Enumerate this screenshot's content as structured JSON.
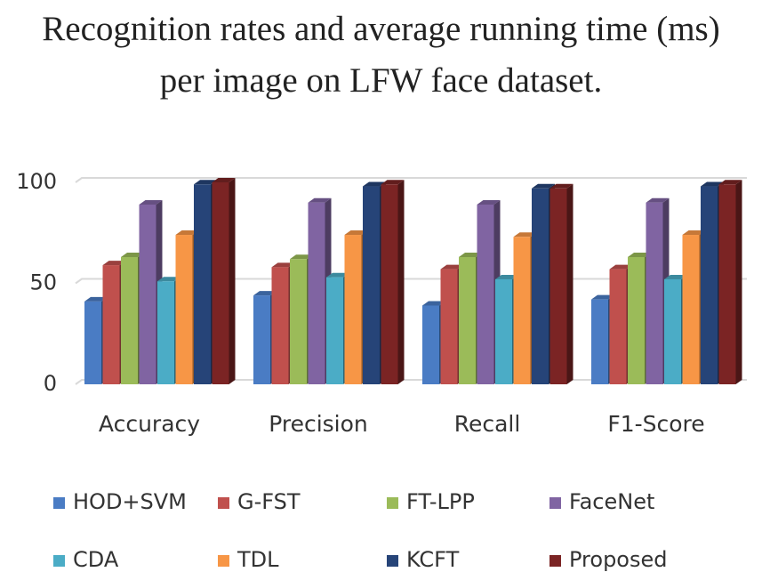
{
  "chart_data": {
    "type": "bar3d",
    "title": "Recognition rates and average running time (ms) per image on LFW face dataset.",
    "categories": [
      "Accuracy",
      "Precision",
      "Recall",
      "F1-Score"
    ],
    "series": [
      {
        "name": "HOD+SVM",
        "color": "#4a7cc4",
        "values": [
          41,
          44,
          39,
          42
        ]
      },
      {
        "name": "G-FST",
        "color": "#c0504d",
        "values": [
          59,
          58,
          57,
          57
        ]
      },
      {
        "name": "FT-LPP",
        "color": "#9bbb59",
        "values": [
          63,
          62,
          63,
          63
        ]
      },
      {
        "name": "FaceNet",
        "color": "#8064a2",
        "values": [
          89,
          90,
          89,
          90
        ]
      },
      {
        "name": "CDA",
        "color": "#4bacc6",
        "values": [
          51,
          53,
          52,
          52
        ]
      },
      {
        "name": "TDL",
        "color": "#f79646",
        "values": [
          74,
          74,
          73,
          74
        ]
      },
      {
        "name": "KCFT",
        "color": "#264478",
        "values": [
          99,
          98,
          97,
          98
        ]
      },
      {
        "name": "Proposed",
        "color": "#7b2424",
        "values": [
          100,
          99,
          97,
          99
        ]
      }
    ],
    "ylim": [
      0,
      100
    ],
    "yticks": [
      0,
      50,
      100
    ],
    "grid": true,
    "legend": "bottom"
  }
}
